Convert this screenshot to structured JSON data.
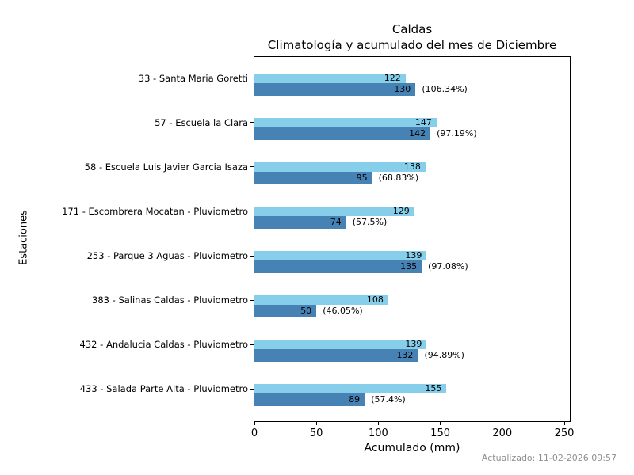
{
  "chart_data": {
    "type": "bar",
    "orientation": "horizontal",
    "title": "Caldas",
    "subtitle": "Climatología y acumulado del mes de Diciembre",
    "xlabel": "Acumulado (mm)",
    "ylabel": "Estaciones",
    "xticks": [
      0,
      50,
      100,
      150,
      200,
      250
    ],
    "xlim": [
      0,
      255
    ],
    "grid": false,
    "legend_position": "none",
    "categories": [
      "33 - Santa Maria Goretti",
      "57 - Escuela la Clara",
      "58 - Escuela Luis Javier Garcia Isaza",
      "171 - Escombrera Mocatan - Pluviometro",
      "253 - Parque 3 Aguas - Pluviometro",
      "383 - Salinas Caldas - Pluviometro",
      "432 - Andalucia Caldas - Pluviometro",
      "433 - Salada Parte Alta - Pluviometro"
    ],
    "series": [
      {
        "name": "Climatología",
        "color": "#87CEEB",
        "values": [
          122,
          147,
          138,
          129,
          139,
          108,
          139,
          155
        ]
      },
      {
        "name": "Acumulado",
        "color": "#4682B4",
        "values": [
          130,
          142,
          95,
          74,
          135,
          50,
          132,
          89
        ]
      }
    ],
    "percent_labels": [
      "(106.34%)",
      "(97.19%)",
      "(68.83%)",
      "(57.5%)",
      "(97.08%)",
      "(46.05%)",
      "(94.89%)",
      "(57.4%)"
    ]
  },
  "footer": {
    "updated": "Actualizado: 11-02-2026 09:57"
  }
}
